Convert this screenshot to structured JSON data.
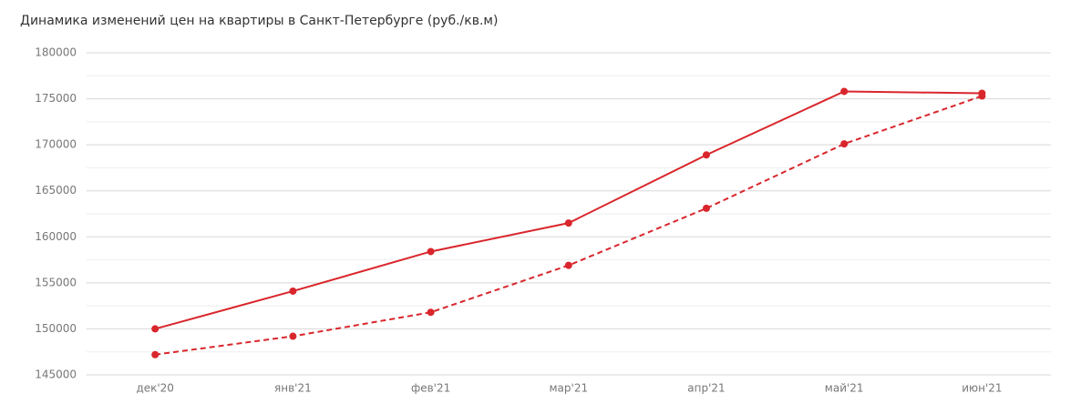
{
  "chart_data": {
    "type": "line",
    "title": "Динамика изменений цен на квартиры в Санкт-Петербурге (руб./кв.м)",
    "categories": [
      "дек'20",
      "янв'21",
      "фев'21",
      "мар'21",
      "апр'21",
      "май'21",
      "июн'21"
    ],
    "series": [
      {
        "color": "#d9262c",
        "dashed": false,
        "values": [
          150000,
          154100,
          158400,
          161500,
          168900,
          175800,
          175600
        ]
      },
      {
        "color": "#d9262c",
        "dashed": true,
        "values": [
          147200,
          149200,
          151800,
          156900,
          163100,
          170100,
          175300
        ]
      }
    ],
    "ylim": [
      145000,
      180000
    ],
    "yticks": [
      145000,
      150000,
      155000,
      160000,
      165000,
      170000,
      175000,
      180000
    ],
    "minor_yticks": [
      147500,
      152500,
      157500,
      162500,
      167500,
      172500,
      177500
    ],
    "grid": true
  }
}
